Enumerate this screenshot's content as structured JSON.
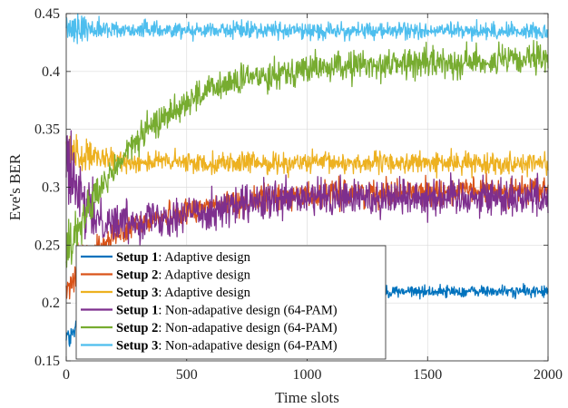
{
  "chart_data": {
    "type": "line",
    "title": "",
    "xlabel": "Time slots",
    "ylabel": "Eve's BER",
    "xlim": [
      0,
      2000
    ],
    "ylim": [
      0.15,
      0.45
    ],
    "xticks": [
      0,
      500,
      1000,
      1500,
      2000
    ],
    "yticks": [
      0.15,
      0.2,
      0.25,
      0.3,
      0.35,
      0.4,
      0.45
    ],
    "xtick_labels": [
      "0",
      "500",
      "1000",
      "1500",
      "2000"
    ],
    "ytick_labels": [
      "0.15",
      "0.2",
      "0.25",
      "0.3",
      "0.35",
      "0.4",
      "0.45"
    ],
    "grid": true,
    "legend_position": "bottom-left",
    "series": [
      {
        "name_bold": "Setup 1",
        "name_rest": ": Adaptive design",
        "color": "#0072BD",
        "x": [
          0,
          10,
          25,
          50,
          100,
          200,
          300,
          400,
          500,
          600,
          700,
          800,
          900,
          1000,
          1200,
          1400,
          1600,
          1800,
          2000
        ],
        "y": [
          0.175,
          0.168,
          0.172,
          0.18,
          0.19,
          0.198,
          0.202,
          0.205,
          0.207,
          0.208,
          0.209,
          0.209,
          0.21,
          0.21,
          0.21,
          0.21,
          0.21,
          0.21,
          0.21
        ],
        "noise": 0.0025
      },
      {
        "name_bold": "Setup 2",
        "name_rest": ": Adaptive design",
        "color": "#D95319",
        "x": [
          0,
          20,
          50,
          100,
          150,
          200,
          300,
          400,
          500,
          600,
          700,
          800,
          900,
          1000,
          1200,
          1400,
          1600,
          1800,
          2000
        ],
        "y": [
          0.205,
          0.215,
          0.228,
          0.24,
          0.25,
          0.258,
          0.268,
          0.275,
          0.28,
          0.284,
          0.287,
          0.29,
          0.292,
          0.293,
          0.295,
          0.296,
          0.296,
          0.297,
          0.297
        ],
        "noise": 0.0055
      },
      {
        "name_bold": "Setup 3",
        "name_rest": ": Adaptive design",
        "color": "#EDB120",
        "x": [
          0,
          30,
          100,
          200,
          300,
          400,
          500,
          600,
          800,
          1000,
          1200,
          1400,
          1600,
          1800,
          2000
        ],
        "y": [
          0.335,
          0.33,
          0.325,
          0.323,
          0.322,
          0.322,
          0.321,
          0.321,
          0.321,
          0.321,
          0.321,
          0.321,
          0.321,
          0.321,
          0.321
        ],
        "noise": 0.0045
      },
      {
        "name_bold": "Setup 1",
        "name_rest": ": Non-adapative design (64-PAM)",
        "color": "#7E2F8E",
        "x": [
          0,
          20,
          50,
          100,
          150,
          200,
          300,
          400,
          500,
          600,
          700,
          800,
          900,
          1000,
          1200,
          1400,
          1600,
          1800,
          2000
        ],
        "y": [
          0.33,
          0.31,
          0.29,
          0.278,
          0.272,
          0.27,
          0.272,
          0.275,
          0.277,
          0.28,
          0.283,
          0.286,
          0.288,
          0.29,
          0.291,
          0.292,
          0.292,
          0.292,
          0.292
        ],
        "noise": 0.0085
      },
      {
        "name_bold": "Setup 2",
        "name_rest": ": Non-adapative design (64-PAM)",
        "color": "#77AC30",
        "x": [
          0,
          25,
          50,
          100,
          150,
          200,
          250,
          300,
          400,
          500,
          600,
          700,
          800,
          900,
          1000,
          1200,
          1400,
          1600,
          1800,
          2000
        ],
        "y": [
          0.24,
          0.255,
          0.265,
          0.285,
          0.3,
          0.315,
          0.33,
          0.342,
          0.36,
          0.374,
          0.384,
          0.391,
          0.396,
          0.4,
          0.402,
          0.405,
          0.407,
          0.408,
          0.409,
          0.41
        ],
        "noise": 0.0065
      },
      {
        "name_bold": "Setup 3",
        "name_rest": ": Non-adapative design (64-PAM)",
        "color": "#4DBEEE",
        "x": [
          0,
          50,
          100,
          200,
          400,
          600,
          800,
          1000,
          1200,
          1400,
          1600,
          1800,
          2000
        ],
        "y": [
          0.438,
          0.437,
          0.437,
          0.436,
          0.436,
          0.436,
          0.436,
          0.435,
          0.435,
          0.435,
          0.435,
          0.435,
          0.435
        ],
        "noise": 0.0035
      }
    ]
  }
}
